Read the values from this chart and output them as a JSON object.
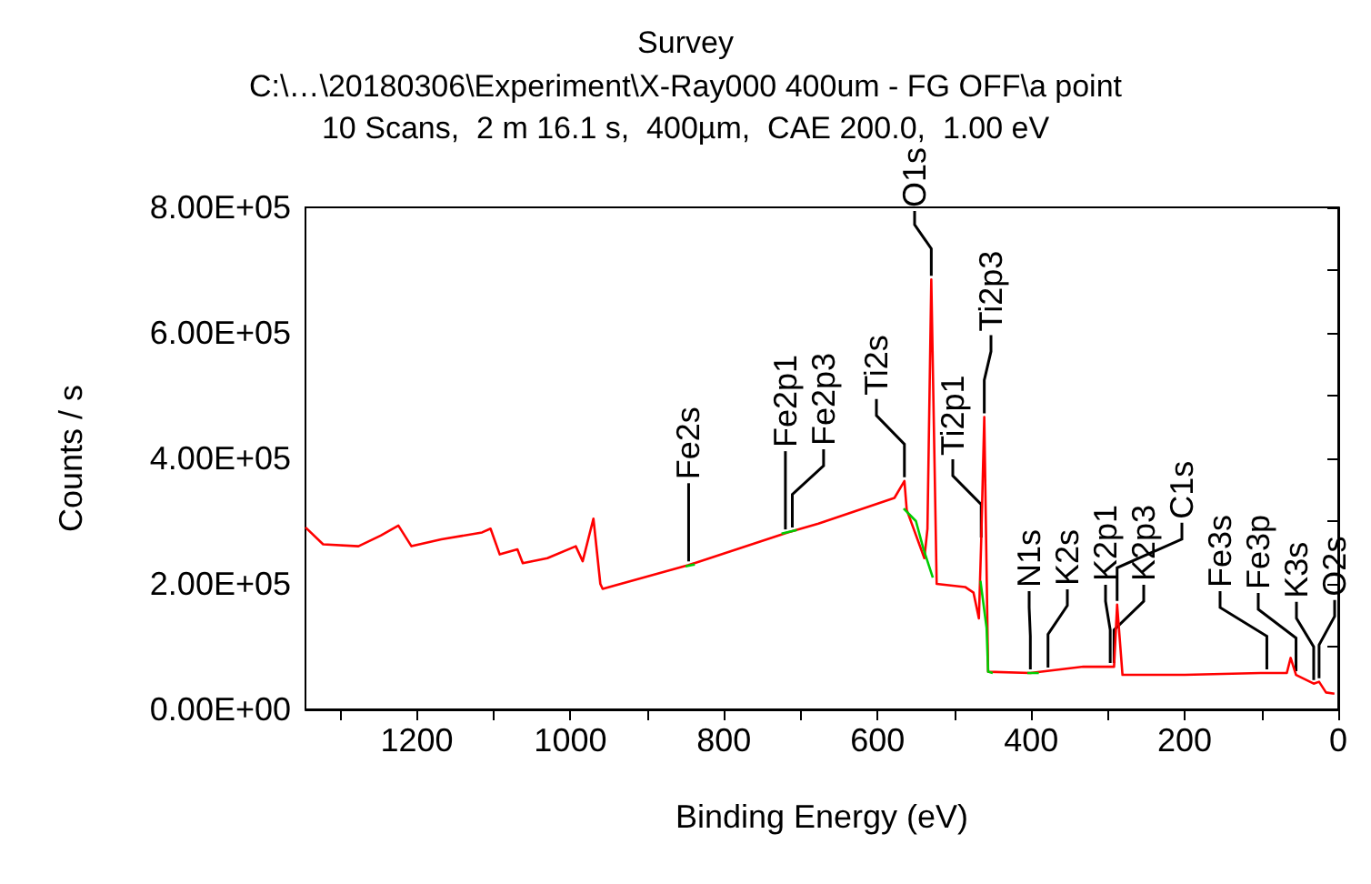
{
  "chart_data": {
    "type": "line",
    "title": "Survey",
    "subtitle": "C:\\…\\20180306\\Experiment\\X-Ray000 400um - FG OFF\\a point\n10 Scans,  2 m 16.1 s,  400µm,  CAE 200.0,  1.00 eV",
    "xlabel": "Binding Energy (eV)",
    "ylabel": "Counts / s",
    "xlim": [
      1345,
      0
    ],
    "ylim": [
      0,
      800000
    ],
    "xticks": [
      {
        "value": 1300,
        "label": null
      },
      1200,
      {
        "value": 1100,
        "label": null
      },
      1000,
      {
        "value": 900,
        "label": null
      },
      800,
      {
        "value": 700,
        "label": null
      },
      600,
      {
        "value": 500,
        "label": null
      },
      400,
      {
        "value": 300,
        "label": null
      },
      200,
      {
        "value": 100,
        "label": null
      },
      0
    ],
    "yticks": [
      {
        "value": 0,
        "label": "0.00E+00"
      },
      {
        "value": 100000,
        "label": null
      },
      {
        "value": 200000,
        "label": "2.00E+05"
      },
      {
        "value": 300000,
        "label": null
      },
      {
        "value": 400000,
        "label": "4.00E+05"
      },
      {
        "value": 500000,
        "label": null
      },
      {
        "value": 600000,
        "label": "6.00E+05"
      },
      {
        "value": 700000,
        "label": null
      },
      {
        "value": 800000,
        "label": "8.00E+05"
      }
    ],
    "grid": false,
    "series": [
      {
        "color": "#ff0000",
        "x": [
          1345,
          1322,
          1276,
          1247,
          1224,
          1207,
          1168,
          1115,
          1104,
          1092,
          1069,
          1062,
          1030,
          993,
          984,
          970,
          961,
          958,
          846,
          717,
          677,
          578,
          565,
          562,
          539,
          535,
          530,
          523,
          486,
          475,
          468,
          465,
          461,
          456,
          401,
          332,
          297,
          292,
          288,
          281,
          200,
          101,
          67,
          62,
          55,
          32,
          25,
          16,
          5
        ],
        "values": [
          290000,
          263000,
          260000,
          277000,
          293000,
          260000,
          271000,
          282000,
          288000,
          247000,
          255000,
          233000,
          241000,
          260000,
          236000,
          304000,
          200000,
          192000,
          230000,
          282000,
          296000,
          337000,
          364000,
          318000,
          241000,
          288000,
          685000,
          200000,
          195000,
          186000,
          145000,
          268000,
          466000,
          60000,
          58000,
          68000,
          68000,
          68000,
          167000,
          55000,
          55000,
          58000,
          58000,
          82000,
          55000,
          41000,
          44000,
          27000,
          25000
        ]
      },
      {
        "color": "#00cc00",
        "x": [
          850,
          838,
          837,
          725,
          705,
          704,
          566,
          550,
          540,
          528,
          527,
          466,
          458,
          456,
          450,
          449,
          405,
          390
        ],
        "values": [
          228000,
          231000,
          null,
          280000,
          286000,
          null,
          320000,
          300000,
          255000,
          210000,
          null,
          205000,
          130000,
          60000,
          58000,
          null,
          58000,
          58000
        ]
      }
    ],
    "annotations": [
      {
        "text": "Fe2s",
        "x": 846,
        "y": 230000
      },
      {
        "text": "Fe2p1",
        "x": 720,
        "y": 281000
      },
      {
        "text": "Fe2p3",
        "x": 711,
        "y": 284000
      },
      {
        "text": "Ti2s",
        "x": 565,
        "y": 364000
      },
      {
        "text": "O1s",
        "x": 530,
        "y": 685000
      },
      {
        "text": "Ti2p1",
        "x": 465,
        "y": 268000
      },
      {
        "text": "Ti2p3",
        "x": 461,
        "y": 466000
      },
      {
        "text": "N1s",
        "x": 401,
        "y": 58000
      },
      {
        "text": "K2s",
        "x": 378,
        "y": 61000
      },
      {
        "text": "K2p1",
        "x": 297,
        "y": 68000
      },
      {
        "text": "K2p3",
        "x": 292,
        "y": 68000
      },
      {
        "text": "C1s",
        "x": 288,
        "y": 167000
      },
      {
        "text": "Fe3s",
        "x": 93,
        "y": 58000
      },
      {
        "text": "Fe3p",
        "x": 55,
        "y": 55000
      },
      {
        "text": "K3s",
        "x": 32,
        "y": 41000
      },
      {
        "text": "O2s",
        "x": 25,
        "y": 44000
      }
    ]
  }
}
